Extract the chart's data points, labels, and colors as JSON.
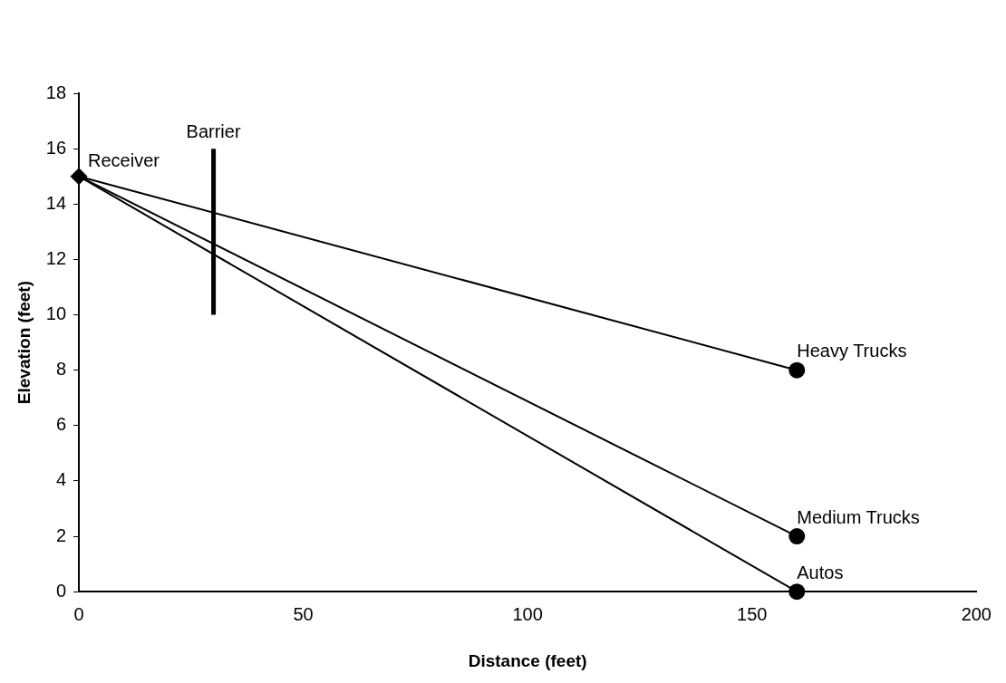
{
  "chart_data": {
    "type": "line",
    "xlabel": "Distance (feet)",
    "ylabel": "Elevation (feet)",
    "xlim": [
      0,
      200
    ],
    "xticks": [
      0,
      50,
      100,
      150,
      200
    ],
    "ylim": [
      0,
      18
    ],
    "yticks": [
      0,
      2,
      4,
      6,
      8,
      10,
      12,
      14,
      16,
      18
    ],
    "grid": false,
    "legend": false,
    "series": [
      {
        "name": "Heavy Trucks",
        "color": "#000000",
        "x": [
          0,
          160
        ],
        "values": [
          15,
          8
        ],
        "marker": "circle"
      },
      {
        "name": "Medium Trucks",
        "color": "#000000",
        "x": [
          0,
          160
        ],
        "values": [
          15,
          2
        ],
        "marker": "circle"
      },
      {
        "name": "Autos",
        "color": "#000000",
        "x": [
          0,
          160
        ],
        "values": [
          15,
          0
        ],
        "marker": "circle"
      },
      {
        "name": "Barrier",
        "color": "#000000",
        "x": [
          30,
          30
        ],
        "values": [
          10,
          16
        ],
        "marker": "none"
      },
      {
        "name": "Receiver",
        "type": "scatter",
        "color": "#000000",
        "x": [
          0
        ],
        "values": [
          15
        ],
        "marker": "diamond"
      }
    ]
  }
}
